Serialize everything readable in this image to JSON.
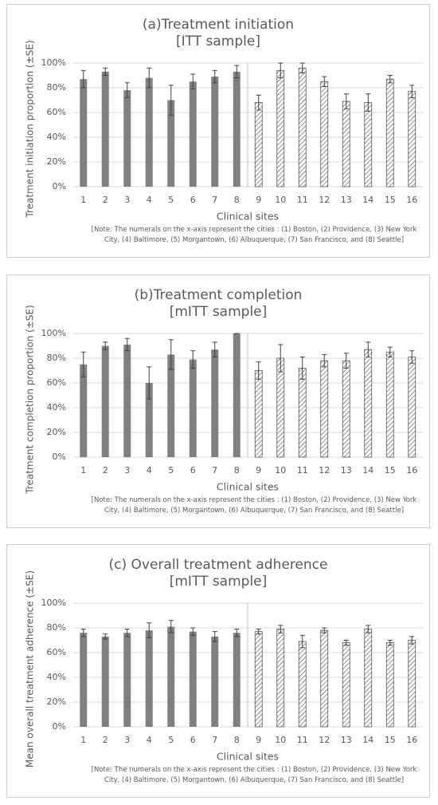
{
  "chart_data": [
    {
      "type": "bar",
      "title": "(a)Treatment initiation",
      "subtitle": "[ITT sample]",
      "y_label": "Treatment initiation proportion (±SE)",
      "x_label": "Clinical sites",
      "note": "[Note: The numerals on the x-axis represent the cities : (1) Boston, (2) Providence, (3) New York City, (4) Baltimore, (5) Morgantown, (6) Albuquerque, (7) San Francisco, and (8) Seattle]",
      "categories": [
        "1",
        "2",
        "3",
        "4",
        "5",
        "6",
        "7",
        "8",
        "9",
        "10",
        "11",
        "12",
        "13",
        "14",
        "15",
        "16"
      ],
      "series": [
        {
          "color": "#808080",
          "values": [
            87,
            93,
            78,
            88,
            70,
            85,
            89,
            93,
            null,
            null,
            null,
            null,
            null,
            null,
            null,
            null
          ],
          "errors": [
            7,
            3,
            6,
            8,
            12,
            6,
            5,
            5,
            null,
            null,
            null,
            null,
            null,
            null,
            null,
            null
          ]
        },
        {
          "color": "#ffffff",
          "hatch": "#555555",
          "values": [
            null,
            null,
            null,
            null,
            null,
            null,
            null,
            null,
            68,
            94,
            96,
            85,
            69,
            68,
            87,
            77
          ],
          "errors": [
            null,
            null,
            null,
            null,
            null,
            null,
            null,
            null,
            6,
            6,
            4,
            4,
            6,
            7,
            3,
            5
          ]
        }
      ],
      "ylim": [
        0,
        100
      ],
      "yticks": [
        {
          "value": 0,
          "label": "0%"
        },
        {
          "value": 20,
          "label": "20%"
        },
        {
          "value": 40,
          "label": "40%"
        },
        {
          "value": 60,
          "label": "60%"
        },
        {
          "value": 80,
          "label": "80%"
        },
        {
          "value": 100,
          "label": "100%"
        }
      ],
      "grid": true
    },
    {
      "type": "bar",
      "title": "(b)Treatment completion",
      "subtitle": "[mITT sample]",
      "y_label": "Treatment completion proportion (±SE)",
      "x_label": "Clinical sites",
      "note": "[Note: The numerals on the x-axis represent the cities : (1) Boston, (2) Providence, (3) New York City, (4) Baltimore, (5) Morgantown, (6) Albuquerque, (7) San Francisco, and (8) Seattle]",
      "categories": [
        "1",
        "2",
        "3",
        "4",
        "5",
        "6",
        "7",
        "8",
        "9",
        "10",
        "11",
        "12",
        "13",
        "14",
        "15",
        "16"
      ],
      "series": [
        {
          "color": "#808080",
          "values": [
            75,
            90,
            91,
            60,
            83,
            79,
            87,
            100,
            null,
            null,
            null,
            null,
            null,
            null,
            null,
            null
          ],
          "errors": [
            10,
            3,
            5,
            13,
            12,
            7,
            6,
            0,
            null,
            null,
            null,
            null,
            null,
            null,
            null,
            null
          ]
        },
        {
          "color": "#ffffff",
          "hatch": "#555555",
          "values": [
            null,
            null,
            null,
            null,
            null,
            null,
            null,
            null,
            70,
            80,
            72,
            78,
            78,
            87,
            85,
            81
          ],
          "errors": [
            null,
            null,
            null,
            null,
            null,
            null,
            null,
            null,
            7,
            11,
            9,
            5,
            6,
            6,
            4,
            5
          ]
        }
      ],
      "ylim": [
        0,
        100
      ],
      "yticks": [
        {
          "value": 0,
          "label": "0%"
        },
        {
          "value": 20,
          "label": "20%"
        },
        {
          "value": 40,
          "label": "40%"
        },
        {
          "value": 60,
          "label": "60%"
        },
        {
          "value": 80,
          "label": "80%"
        },
        {
          "value": 100,
          "label": "100%"
        }
      ],
      "grid": true
    },
    {
      "type": "bar",
      "title": "(c) Overall treatment adherence",
      "subtitle": "[mITT sample]",
      "y_label": "Mean overall treatment adherence (±SE)",
      "x_label": "Clinical sites",
      "note": "[Note: The numerals on the x-axis represent the cities : (1) Boston, (2) Providence, (3) New York City, (4) Baltimore, (5) Morgantown, (6) Albuquerque, (7) San Francisco, and (8) Seattle]",
      "categories": [
        "1",
        "2",
        "3",
        "4",
        "5",
        "6",
        "7",
        "8",
        "9",
        "10",
        "11",
        "12",
        "13",
        "14",
        "15",
        "16"
      ],
      "series": [
        {
          "color": "#808080",
          "values": [
            76,
            73,
            76,
            78,
            81,
            77,
            73,
            76,
            null,
            null,
            null,
            null,
            null,
            null,
            null,
            null
          ],
          "errors": [
            3,
            2,
            3,
            6,
            5,
            3,
            4,
            3,
            null,
            null,
            null,
            null,
            null,
            null,
            null,
            null
          ]
        },
        {
          "color": "#ffffff",
          "hatch": "#555555",
          "values": [
            null,
            null,
            null,
            null,
            null,
            null,
            null,
            null,
            77,
            79,
            69,
            78,
            68,
            79,
            68,
            70
          ],
          "errors": [
            null,
            null,
            null,
            null,
            null,
            null,
            null,
            null,
            2,
            3,
            5,
            2,
            2,
            3,
            2,
            3
          ]
        }
      ],
      "ylim": [
        0,
        100
      ],
      "yticks": [
        {
          "value": 0,
          "label": "0%"
        },
        {
          "value": 20,
          "label": "20%"
        },
        {
          "value": 40,
          "label": "40%"
        },
        {
          "value": 60,
          "label": "60%"
        },
        {
          "value": 80,
          "label": "80%"
        },
        {
          "value": 100,
          "label": "100%"
        }
      ],
      "grid": true
    }
  ]
}
